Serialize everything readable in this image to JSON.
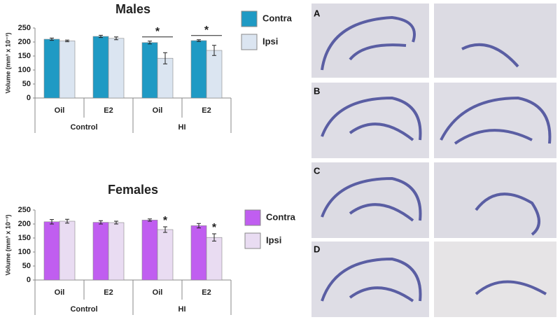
{
  "chart_data": [
    {
      "type": "bar",
      "title": "Males",
      "ylabel": "Volume (mm³ x 10⁻³)",
      "categories": [
        "Oil",
        "E2",
        "Oil",
        "E2"
      ],
      "groups": [
        "Control",
        "HI"
      ],
      "series": [
        {
          "name": "Contra",
          "color": "#1f9ac4",
          "values": [
            210,
            220,
            198,
            205
          ],
          "errors": [
            4,
            4,
            5,
            3
          ]
        },
        {
          "name": "Ipsi",
          "color": "#dbe5f1",
          "values": [
            204,
            213,
            142,
            170
          ],
          "errors": [
            3,
            5,
            20,
            18
          ]
        }
      ],
      "significance": [
        null,
        null,
        "*",
        "*"
      ],
      "significance_bracket": true,
      "ylim": [
        0,
        250
      ],
      "yticks": [
        0,
        50,
        100,
        150,
        200,
        250
      ]
    },
    {
      "type": "bar",
      "title": "Females",
      "ylabel": "Volume (mm³ x 10⁻³)",
      "categories": [
        "Oil",
        "E2",
        "Oil",
        "E2"
      ],
      "groups": [
        "Control",
        "HI"
      ],
      "series": [
        {
          "name": "Contra",
          "color": "#c05ef0",
          "values": [
            208,
            206,
            214,
            194
          ],
          "errors": [
            8,
            6,
            4,
            8
          ]
        },
        {
          "name": "Ipsi",
          "color": "#e9dcf2",
          "values": [
            210,
            205,
            180,
            152
          ],
          "errors": [
            7,
            5,
            10,
            13
          ]
        }
      ],
      "significance": [
        null,
        null,
        "*",
        "*"
      ],
      "significance_bracket": false,
      "ylim": [
        0,
        250
      ],
      "yticks": [
        0,
        50,
        100,
        150,
        200,
        250
      ]
    }
  ],
  "panels": [
    "A",
    "B",
    "C",
    "D"
  ]
}
